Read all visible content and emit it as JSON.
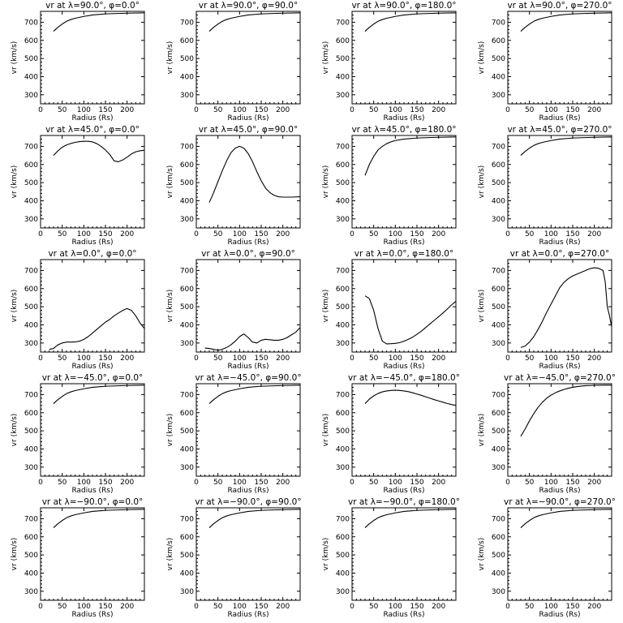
{
  "chart_data": {
    "type": "line",
    "layout": {
      "rows": 5,
      "cols": 4
    },
    "shared": {
      "xlabel": "Radius (Rs)",
      "ylabel": "vr (km/s)",
      "xlim": [
        0,
        240
      ],
      "ylim": [
        250,
        760
      ],
      "xticks": [
        0,
        50,
        100,
        150,
        200
      ],
      "yticks": [
        300,
        400,
        500,
        600,
        700
      ],
      "grid": false,
      "line_color": "#000000"
    },
    "panels": [
      {
        "title": "vr at λ=90.0°, φ=0.0°",
        "x": [
          30,
          40,
          50,
          60,
          70,
          80,
          100,
          120,
          150,
          200,
          240
        ],
        "y": [
          650,
          672,
          690,
          705,
          715,
          722,
          732,
          740,
          746,
          750,
          752
        ]
      },
      {
        "title": "vr at λ=90.0°, φ=90.0°",
        "x": [
          30,
          40,
          50,
          60,
          70,
          80,
          100,
          120,
          150,
          200,
          240
        ],
        "y": [
          650,
          672,
          690,
          705,
          715,
          722,
          732,
          740,
          746,
          750,
          752
        ]
      },
      {
        "title": "vr at λ=90.0°, φ=180.0°",
        "x": [
          30,
          40,
          50,
          60,
          70,
          80,
          100,
          120,
          150,
          200,
          240
        ],
        "y": [
          650,
          672,
          690,
          705,
          715,
          722,
          732,
          740,
          746,
          750,
          752
        ]
      },
      {
        "title": "vr at λ=90.0°, φ=270.0°",
        "x": [
          30,
          40,
          50,
          60,
          70,
          80,
          100,
          120,
          150,
          200,
          240
        ],
        "y": [
          650,
          672,
          690,
          705,
          715,
          722,
          732,
          740,
          746,
          750,
          752
        ]
      },
      {
        "title": "vr at λ=45.0°, φ=0.0°",
        "x": [
          30,
          40,
          50,
          60,
          70,
          80,
          90,
          100,
          110,
          120,
          130,
          140,
          150,
          160,
          170,
          180,
          190,
          200,
          210,
          220,
          230,
          240
        ],
        "y": [
          650,
          675,
          695,
          708,
          716,
          722,
          726,
          728,
          728,
          725,
          715,
          700,
          680,
          655,
          620,
          615,
          625,
          640,
          658,
          670,
          676,
          678
        ]
      },
      {
        "title": "vr at λ=45.0°, φ=90.0°",
        "x": [
          30,
          40,
          50,
          60,
          70,
          80,
          90,
          100,
          110,
          120,
          130,
          140,
          150,
          160,
          170,
          180,
          190,
          200,
          220,
          240
        ],
        "y": [
          390,
          445,
          505,
          565,
          620,
          665,
          690,
          700,
          690,
          660,
          615,
          560,
          510,
          470,
          445,
          430,
          422,
          420,
          420,
          422
        ]
      },
      {
        "title": "vr at λ=45.0°, φ=180.0°",
        "x": [
          30,
          40,
          50,
          60,
          70,
          80,
          90,
          100,
          120,
          150,
          200,
          240
        ],
        "y": [
          540,
          600,
          645,
          680,
          700,
          715,
          725,
          732,
          740,
          746,
          750,
          752
        ]
      },
      {
        "title": "vr at λ=45.0°, φ=270.0°",
        "x": [
          30,
          40,
          50,
          60,
          70,
          80,
          100,
          120,
          150,
          200,
          240
        ],
        "y": [
          650,
          672,
          690,
          705,
          715,
          722,
          732,
          740,
          746,
          750,
          752
        ]
      },
      {
        "title": "vr at λ=0.0°, φ=0.0°",
        "x": [
          20,
          30,
          40,
          50,
          60,
          70,
          80,
          90,
          100,
          110,
          120,
          130,
          140,
          150,
          160,
          170,
          180,
          190,
          200,
          210,
          220,
          230,
          240
        ],
        "y": [
          265,
          270,
          290,
          300,
          305,
          305,
          306,
          310,
          320,
          335,
          355,
          375,
          395,
          415,
          430,
          450,
          465,
          480,
          490,
          480,
          450,
          410,
          380
        ]
      },
      {
        "title": "vr at λ=0.0°, φ=90.0°",
        "x": [
          20,
          30,
          40,
          50,
          60,
          70,
          80,
          90,
          100,
          110,
          120,
          130,
          140,
          150,
          160,
          170,
          180,
          190,
          200,
          210,
          220,
          230,
          240
        ],
        "y": [
          272,
          270,
          265,
          260,
          265,
          275,
          290,
          310,
          335,
          350,
          330,
          305,
          300,
          315,
          320,
          318,
          315,
          315,
          320,
          330,
          345,
          360,
          385
        ]
      },
      {
        "title": "vr at λ=0.0°, φ=180.0°",
        "x": [
          30,
          40,
          50,
          60,
          70,
          80,
          90,
          100,
          110,
          120,
          130,
          140,
          150,
          160,
          170,
          180,
          190,
          200,
          210,
          220,
          230,
          240
        ],
        "y": [
          560,
          545,
          480,
          380,
          310,
          295,
          296,
          298,
          302,
          310,
          320,
          332,
          348,
          365,
          385,
          405,
          425,
          445,
          465,
          487,
          510,
          530
        ]
      },
      {
        "title": "vr at λ=0.0°, φ=270.0°",
        "x": [
          30,
          40,
          50,
          60,
          70,
          80,
          90,
          100,
          110,
          120,
          130,
          140,
          150,
          160,
          170,
          180,
          190,
          200,
          210,
          220,
          225,
          230,
          235,
          240
        ],
        "y": [
          275,
          283,
          305,
          335,
          375,
          420,
          470,
          515,
          560,
          605,
          635,
          655,
          670,
          680,
          690,
          700,
          710,
          715,
          712,
          700,
          640,
          500,
          450,
          390
        ]
      },
      {
        "title": "vr at λ=−45.0°, φ=0.0°",
        "x": [
          30,
          40,
          50,
          60,
          70,
          80,
          100,
          120,
          150,
          200,
          240
        ],
        "y": [
          650,
          672,
          690,
          705,
          715,
          722,
          732,
          740,
          746,
          750,
          752
        ]
      },
      {
        "title": "vr at λ=−45.0°, φ=90.0°",
        "x": [
          30,
          40,
          50,
          60,
          70,
          80,
          100,
          120,
          150,
          200,
          240
        ],
        "y": [
          650,
          672,
          690,
          705,
          715,
          722,
          732,
          740,
          746,
          750,
          752
        ]
      },
      {
        "title": "vr at λ=−45.0°, φ=180.0°",
        "x": [
          30,
          40,
          50,
          60,
          70,
          80,
          90,
          100,
          110,
          120,
          130,
          140,
          150,
          160,
          170,
          180,
          190,
          200,
          210,
          220,
          230,
          240
        ],
        "y": [
          650,
          675,
          693,
          706,
          715,
          720,
          723,
          724,
          723,
          720,
          716,
          710,
          703,
          696,
          688,
          680,
          672,
          665,
          658,
          651,
          645,
          640
        ]
      },
      {
        "title": "vr at λ=−45.0°, φ=270.0°",
        "x": [
          30,
          40,
          50,
          60,
          70,
          80,
          90,
          100,
          110,
          120,
          130,
          140,
          150,
          160,
          170,
          180,
          190,
          200,
          220,
          240
        ],
        "y": [
          470,
          510,
          555,
          595,
          630,
          658,
          680,
          697,
          710,
          720,
          728,
          735,
          740,
          744,
          747,
          749,
          750,
          751,
          752,
          752
        ]
      },
      {
        "title": "vr at λ=−90.0°, φ=0.0°",
        "x": [
          30,
          40,
          50,
          60,
          70,
          80,
          100,
          120,
          150,
          200,
          240
        ],
        "y": [
          650,
          672,
          690,
          705,
          715,
          722,
          732,
          740,
          746,
          750,
          752
        ]
      },
      {
        "title": "vr at λ=−90.0°, φ=90.0°",
        "x": [
          30,
          40,
          50,
          60,
          70,
          80,
          100,
          120,
          150,
          200,
          240
        ],
        "y": [
          650,
          672,
          690,
          705,
          715,
          722,
          732,
          740,
          746,
          750,
          752
        ]
      },
      {
        "title": "vr at λ=−90.0°, φ=180.0°",
        "x": [
          30,
          40,
          50,
          60,
          70,
          80,
          100,
          120,
          150,
          200,
          240
        ],
        "y": [
          650,
          672,
          690,
          705,
          715,
          722,
          732,
          740,
          746,
          750,
          752
        ]
      },
      {
        "title": "vr at λ=−90.0°, φ=270.0°",
        "x": [
          30,
          40,
          50,
          60,
          70,
          80,
          100,
          120,
          150,
          200,
          240
        ],
        "y": [
          650,
          672,
          690,
          705,
          715,
          722,
          732,
          740,
          746,
          750,
          752
        ]
      }
    ]
  }
}
